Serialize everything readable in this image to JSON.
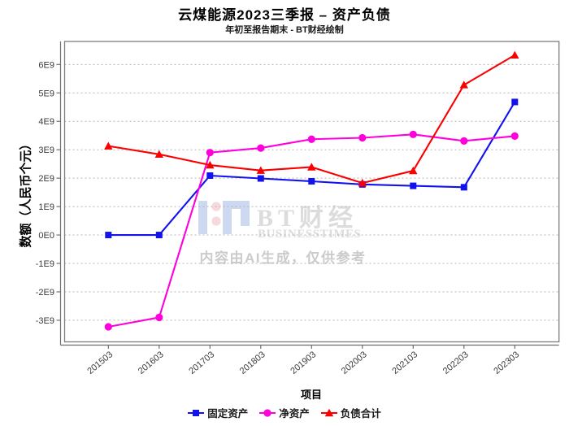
{
  "header": {
    "title": "云煤能源2023三季报 – 资产负债",
    "subtitle": "年初至报告期末 - BT财经绘制"
  },
  "axes": {
    "y_label": "数额（人民币个元）",
    "x_label": "项目"
  },
  "watermark": {
    "brand_logo": "bt-logo",
    "brand_cn": "BT财经",
    "brand_en": "BUSINESSTIMES",
    "disclaimer": "内容由AI生成，仅供参考"
  },
  "colors": {
    "blue": "#1212ee",
    "magenta": "#ff00dd",
    "red": "#fb0000",
    "grid": "#b4b4b4",
    "axis": "#6e6e6e",
    "plot_border": "#7d7d7d",
    "tick_text": "#3a3a3a",
    "logo_blue": "#ccd9f1",
    "logo_pink": "#f7d9dc"
  },
  "chart_data": {
    "type": "line",
    "title": "云煤能源2023三季报 – 资产负债",
    "subtitle": "年初至报告期末 - BT财经绘制",
    "xlabel": "项目",
    "ylabel": "数额（人民币个元）",
    "grid": "dashed-horizontal",
    "legend_position": "bottom",
    "categories": [
      "201503",
      "201603",
      "201703",
      "201803",
      "201903",
      "202003",
      "202103",
      "202203",
      "202303"
    ],
    "y_tick_labels": [
      "6E9",
      "5E9",
      "4E9",
      "3E9",
      "2E9",
      "1E9",
      "0E0",
      "-1E9",
      "-2E9",
      "-3E9"
    ],
    "y_tick_values": [
      6000000000.0,
      5000000000.0,
      4000000000.0,
      3000000000.0,
      2000000000.0,
      1000000000.0,
      0,
      -1000000000.0,
      -2000000000.0,
      -3000000000.0
    ],
    "ylim": [
      -3760000000.0,
      6810000000.0
    ],
    "series": [
      {
        "id": "fixed-assets",
        "name": "固定资产",
        "color": "#1212ee",
        "marker": "square",
        "values": [
          0,
          0,
          2090000000.0,
          1990000000.0,
          1890000000.0,
          1780000000.0,
          1730000000.0,
          1680000000.0,
          4680000000.0
        ]
      },
      {
        "id": "net-assets",
        "name": "净资产",
        "color": "#ff00dd",
        "marker": "circle",
        "values": [
          -3230000000.0,
          -2900000000.0,
          2900000000.0,
          3060000000.0,
          3370000000.0,
          3420000000.0,
          3540000000.0,
          3310000000.0,
          3480000000.0
        ]
      },
      {
        "id": "total-liabilities",
        "name": "负债合计",
        "color": "#fb0000",
        "marker": "triangle",
        "values": [
          3130000000.0,
          2840000000.0,
          2460000000.0,
          2270000000.0,
          2390000000.0,
          1830000000.0,
          2260000000.0,
          5280000000.0,
          6330000000.0
        ]
      }
    ]
  }
}
